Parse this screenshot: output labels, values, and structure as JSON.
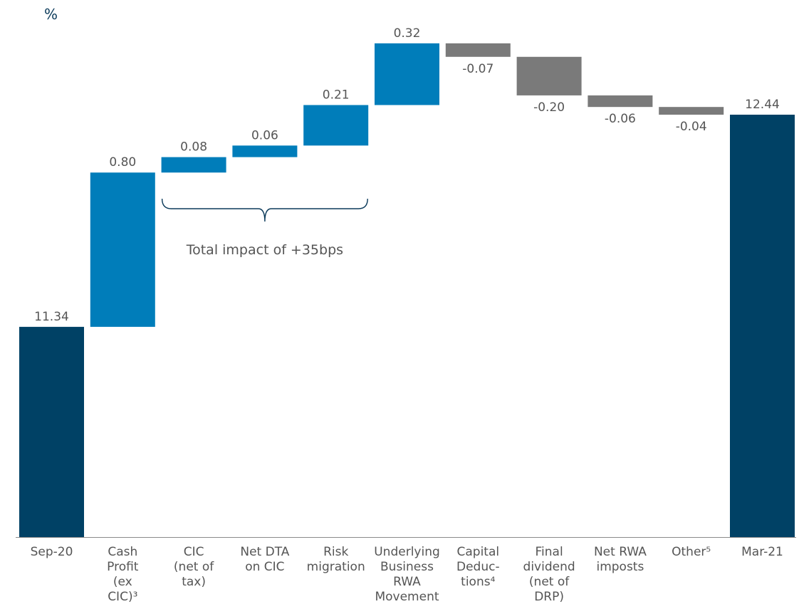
{
  "unit_label": "%",
  "chart_data": {
    "type": "waterfall",
    "title": "",
    "xlabel": "",
    "ylabel": "",
    "ylim": [
      10.25,
      12.85
    ],
    "grid": false,
    "categories": [
      {
        "lines": [
          "Sep-20"
        ]
      },
      {
        "lines": [
          "Cash",
          "Profit",
          "(ex",
          "CIC)³"
        ]
      },
      {
        "lines": [
          "CIC",
          "(net of",
          "tax)"
        ]
      },
      {
        "lines": [
          "Net DTA",
          "on CIC"
        ]
      },
      {
        "lines": [
          "Risk",
          "migration"
        ]
      },
      {
        "lines": [
          "Underlying",
          "Business",
          "RWA",
          "Movement"
        ]
      },
      {
        "lines": [
          "Capital",
          "Deduc-",
          "tions⁴"
        ]
      },
      {
        "lines": [
          "Final",
          "dividend",
          "(net of",
          "DRP)"
        ]
      },
      {
        "lines": [
          "Net RWA",
          "imposts"
        ]
      },
      {
        "lines": [
          "Other⁵"
        ]
      },
      {
        "lines": [
          "Mar-21"
        ]
      }
    ],
    "bars": [
      {
        "kind": "total",
        "value": 11.34,
        "label": "11.34"
      },
      {
        "kind": "delta",
        "value": 0.8,
        "label": "0.80"
      },
      {
        "kind": "delta",
        "value": 0.08,
        "label": "0.08"
      },
      {
        "kind": "delta",
        "value": 0.06,
        "label": "0.06"
      },
      {
        "kind": "delta",
        "value": 0.21,
        "label": "0.21"
      },
      {
        "kind": "delta",
        "value": 0.32,
        "label": "0.32"
      },
      {
        "kind": "delta",
        "value": -0.07,
        "label": "-0.07"
      },
      {
        "kind": "delta",
        "value": -0.2,
        "label": "-0.20"
      },
      {
        "kind": "delta",
        "value": -0.06,
        "label": "-0.06"
      },
      {
        "kind": "delta",
        "value": -0.04,
        "label": "-0.04"
      },
      {
        "kind": "total",
        "value": 12.44,
        "label": "12.44"
      }
    ],
    "colors": {
      "total": "#004165",
      "increase": "#007dba",
      "decrease": "#7a7a7a",
      "text": "#555555",
      "bracket": "#0b3a5a"
    },
    "annotation": {
      "text": "Total impact of +35bps",
      "from_index": 2,
      "to_index": 4
    }
  }
}
